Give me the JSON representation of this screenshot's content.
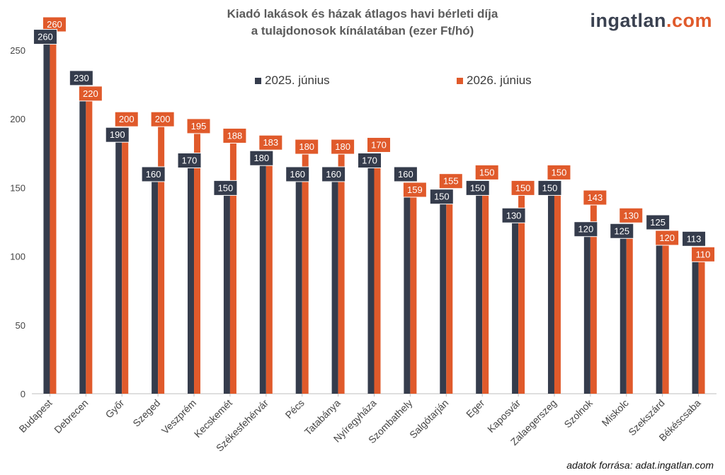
{
  "title_line1": "Kiadó lakások és házak átlagos havi bérleti díja",
  "title_line2": "a tulajdonosok kínálatában (ezer Ft/hó)",
  "brand_part1": "ingatlan",
  "brand_part2": ".com",
  "source": "adatok forrása: adat.ingatlan.com",
  "colors": {
    "s1": "#353c4c",
    "s2": "#e05a2b",
    "axis": "#bfbfbf"
  },
  "chart_data": {
    "type": "bar",
    "title": "Kiadó lakások és házak átlagos havi bérleti díja a tulajdonosok kínálatában (ezer Ft/hó)",
    "categories": [
      "Budapest",
      "Debrecen",
      "Győr",
      "Szeged",
      "Veszprém",
      "Kecskemét",
      "Székesfehérvár",
      "Pécs",
      "Tatabánya",
      "Nyíregyháza",
      "Szombathely",
      "Salgótarján",
      "Eger",
      "Kaposvár",
      "Zalaegerszeg",
      "Szolnok",
      "Miskolc",
      "Szekszárd",
      "Békéscsaba"
    ],
    "series": [
      {
        "name": "2025. június",
        "values": [
          260,
          230,
          190,
          160,
          170,
          150,
          180,
          160,
          160,
          170,
          160,
          150,
          150,
          130,
          150,
          120,
          125,
          125,
          113
        ]
      },
      {
        "name": "2026. június",
        "values": [
          260,
          220,
          200,
          200,
          195,
          188,
          183,
          180,
          180,
          170,
          159,
          155,
          150,
          150,
          150,
          143,
          130,
          120,
          110
        ]
      }
    ],
    "yticks": [
      "0",
      "50",
      "100",
      "150",
      "200",
      "250"
    ],
    "ylim": [
      0,
      260
    ],
    "grid": false,
    "legend_position": "top"
  }
}
